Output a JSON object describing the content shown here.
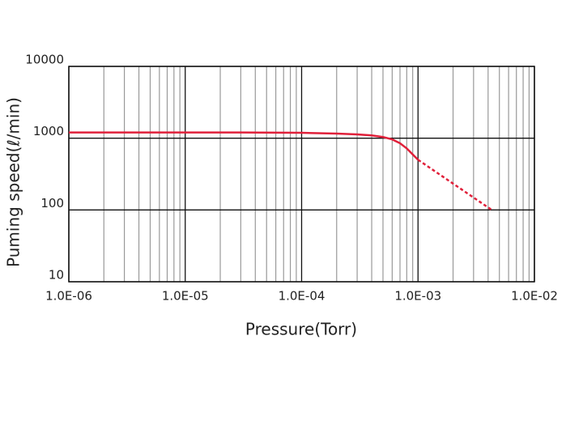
{
  "chart_data": {
    "type": "line",
    "xlabel": "Pressure(Torr)",
    "ylabel": "Puming speed(ℓ/min)",
    "xscale": "log",
    "yscale": "log",
    "xlim": [
      1e-06,
      0.01
    ],
    "ylim": [
      10,
      10000
    ],
    "xticks": [
      {
        "value": 1e-06,
        "label": "1.0E-06"
      },
      {
        "value": 1e-05,
        "label": "1.0E-05"
      },
      {
        "value": 0.0001,
        "label": "1.0E-04"
      },
      {
        "value": 0.001,
        "label": "1.0E-03"
      },
      {
        "value": 0.01,
        "label": "1.0E-02"
      }
    ],
    "x_minor_ticks": [
      2e-06,
      3e-06,
      4e-06,
      5e-06,
      6e-06,
      7e-06,
      8e-06,
      9e-06,
      2e-05,
      3e-05,
      4e-05,
      5e-05,
      6e-05,
      7e-05,
      8e-05,
      9e-05,
      0.0002,
      0.0003,
      0.0004,
      0.0005,
      0.0006,
      0.0007,
      0.0008,
      0.0009,
      0.002,
      0.003,
      0.004,
      0.005,
      0.006,
      0.007,
      0.008,
      0.009
    ],
    "yticks": [
      10,
      100,
      1000,
      10000
    ],
    "grid": true,
    "series": [
      {
        "color": "#e0203a",
        "line_style": "solid",
        "x": [
          1e-06,
          3e-05,
          0.0001,
          0.0002,
          0.0003,
          0.0004,
          0.0005,
          0.0006,
          0.0007,
          0.0008,
          0.001
        ],
        "values": [
          1200,
          1200,
          1190,
          1160,
          1130,
          1090,
          1040,
          960,
          850,
          720,
          500
        ]
      },
      {
        "color": "#e0203a",
        "line_style": "dashed",
        "x": [
          0.001,
          0.0043
        ],
        "values": [
          500,
          100
        ]
      }
    ]
  }
}
